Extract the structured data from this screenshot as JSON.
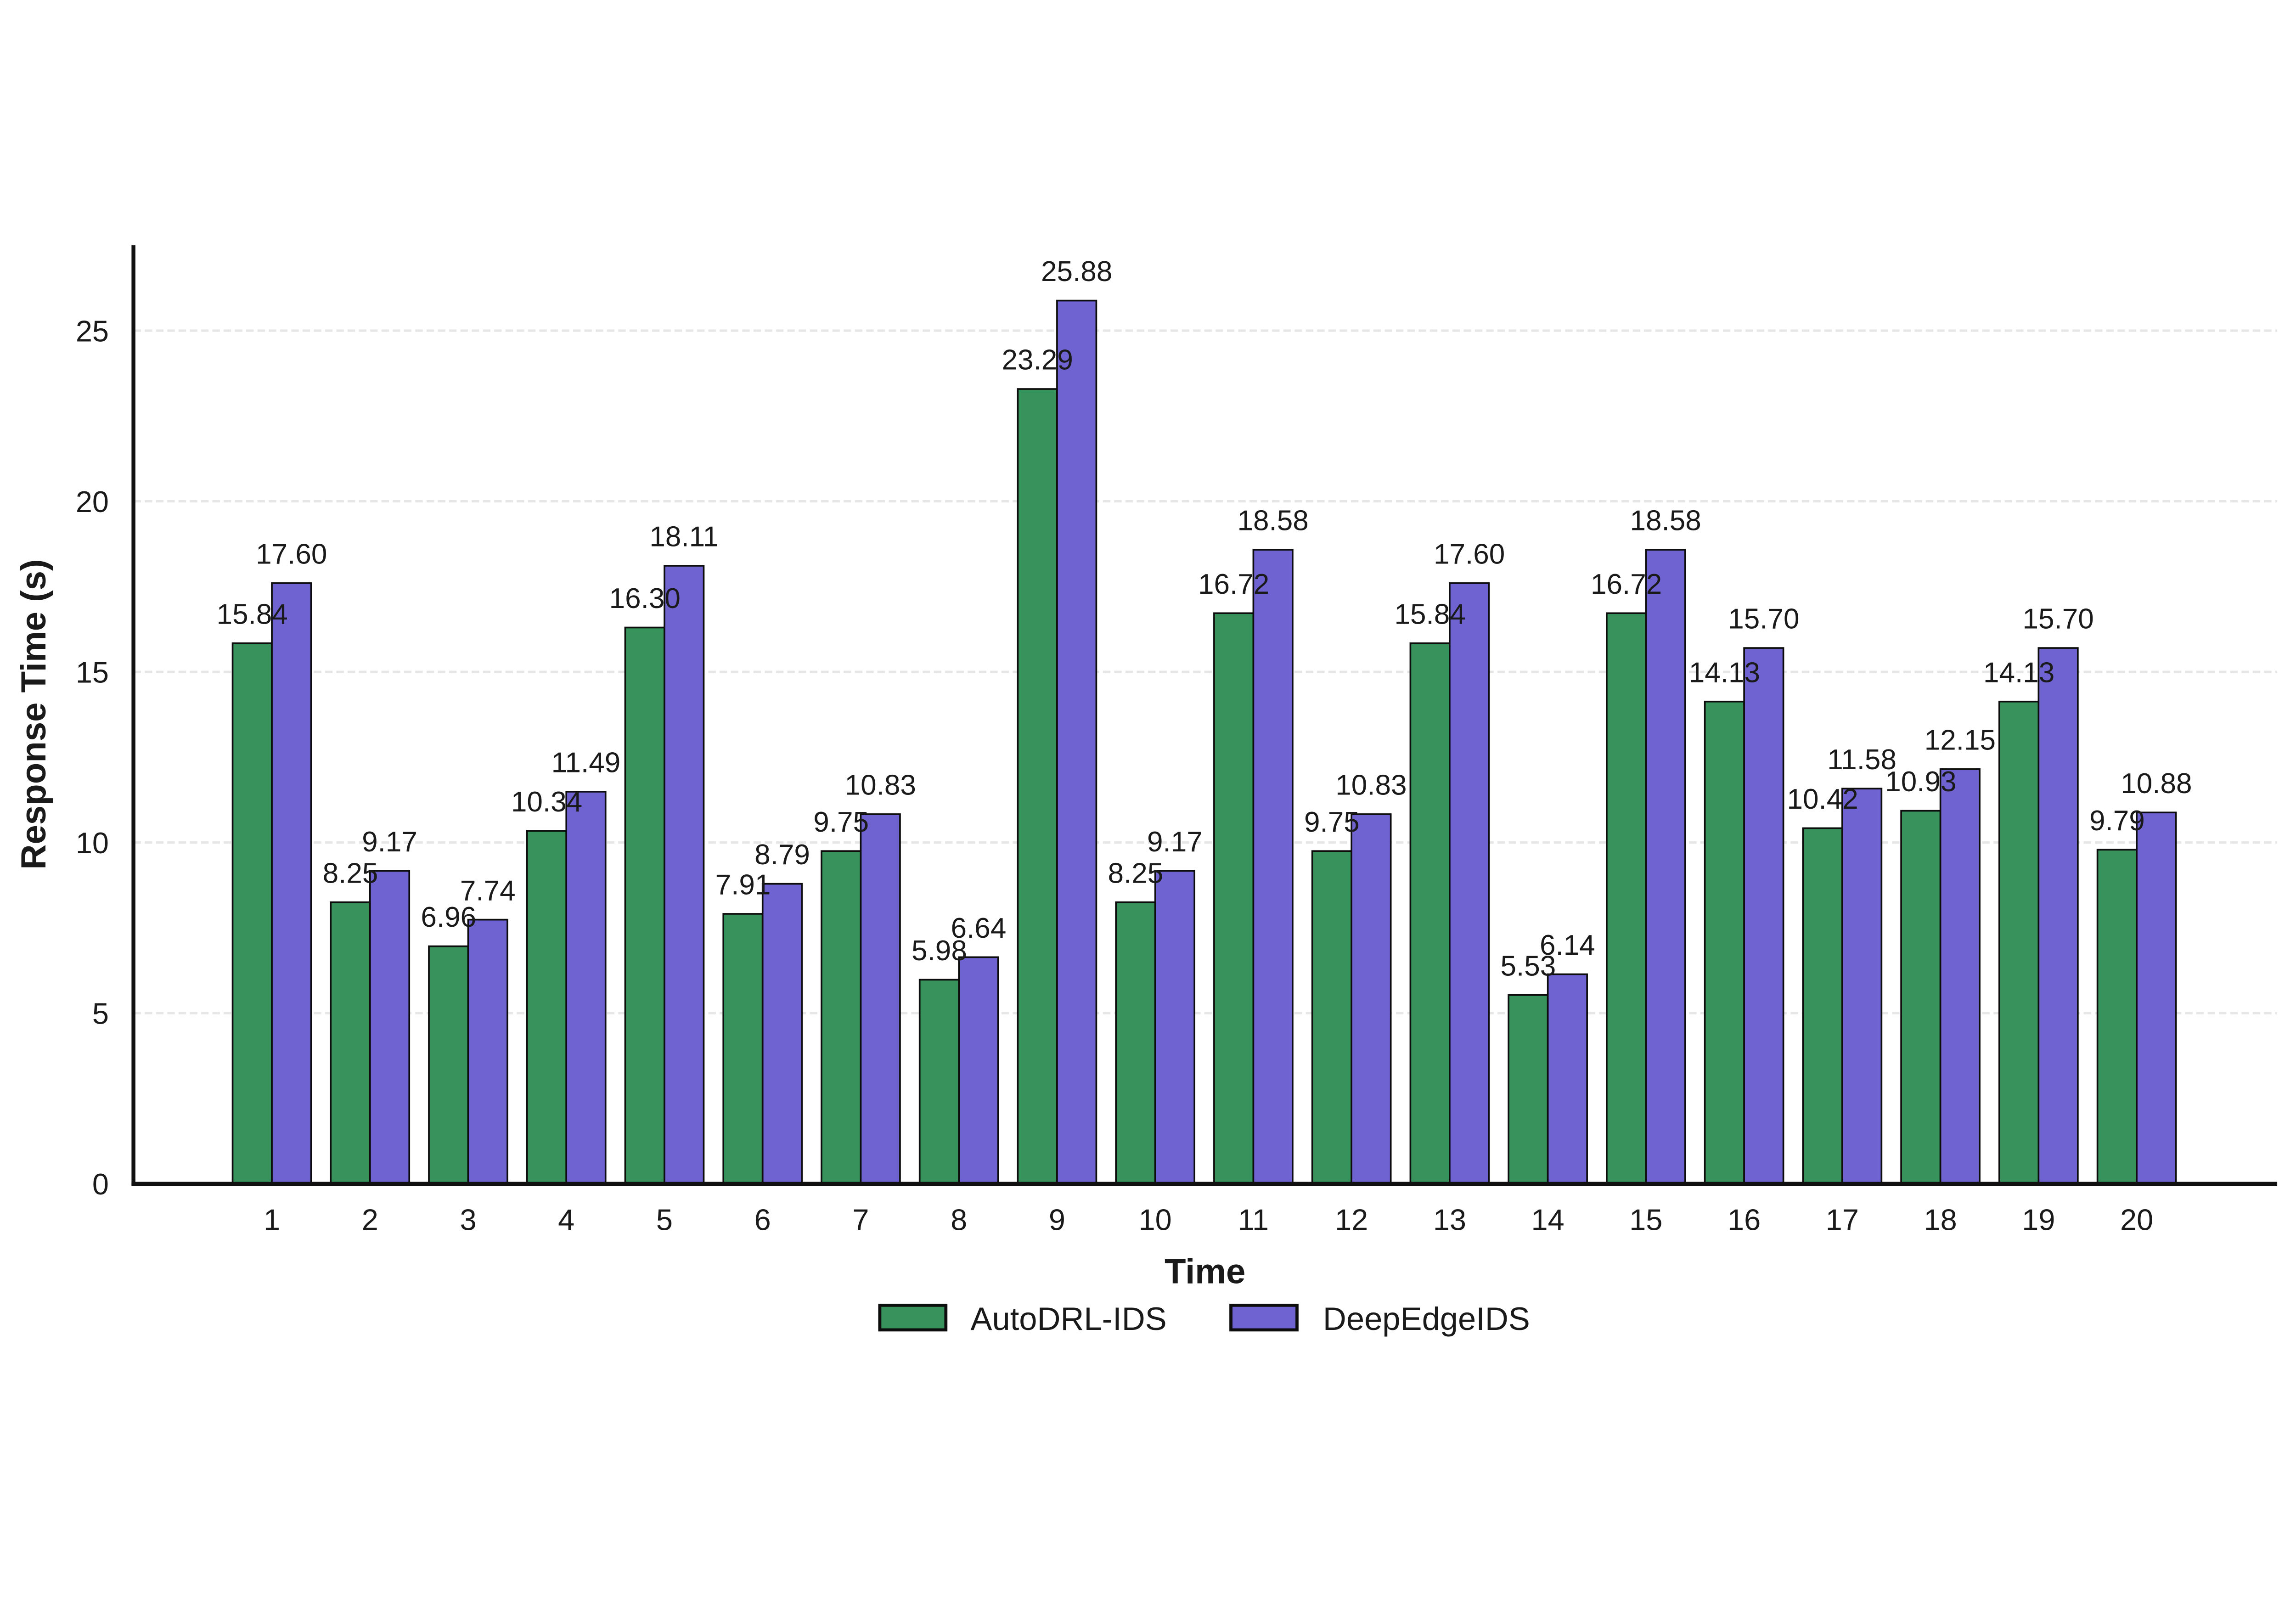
{
  "figure": {
    "background": "#ffffff",
    "text_color": "#1a1a1a"
  },
  "chart_data": {
    "type": "bar",
    "title": "",
    "xlabel": "Time",
    "ylabel": "Response Time (s)",
    "categories": [
      "1",
      "2",
      "3",
      "4",
      "5",
      "6",
      "7",
      "8",
      "9",
      "10",
      "11",
      "12",
      "13",
      "14",
      "15",
      "16",
      "17",
      "18",
      "19",
      "20"
    ],
    "series": [
      {
        "name": "AutoDRL-IDS",
        "color": "#37935B",
        "values": [
          15.84,
          8.25,
          6.96,
          10.34,
          16.3,
          7.91,
          9.75,
          5.98,
          23.29,
          8.25,
          16.72,
          9.75,
          15.84,
          5.53,
          16.72,
          14.13,
          10.42,
          10.93,
          14.13,
          9.79
        ]
      },
      {
        "name": "DeepEdgeIDS",
        "color": "#6F63D2",
        "values": [
          17.6,
          9.17,
          7.74,
          11.49,
          18.11,
          8.79,
          10.83,
          6.64,
          25.88,
          9.17,
          18.58,
          10.83,
          17.6,
          6.14,
          18.58,
          15.7,
          11.58,
          12.15,
          15.7,
          10.88
        ]
      }
    ],
    "bar_edge_color": "#0d0d0d",
    "bar_width": 0.4,
    "value_labels": true,
    "value_label_decimals": 2,
    "ylim": [
      0,
      27.5
    ],
    "yticks": [
      0,
      5,
      10,
      15,
      20,
      25
    ],
    "xlim": [
      -0.41,
      21.43
    ],
    "grid": {
      "axis": "y",
      "style": "dashed",
      "color": "#E6E6E6"
    },
    "legend": {
      "position": "bottom-center",
      "frame": false,
      "entries": [
        "AutoDRL-IDS",
        "DeepEdgeIDS"
      ]
    }
  }
}
